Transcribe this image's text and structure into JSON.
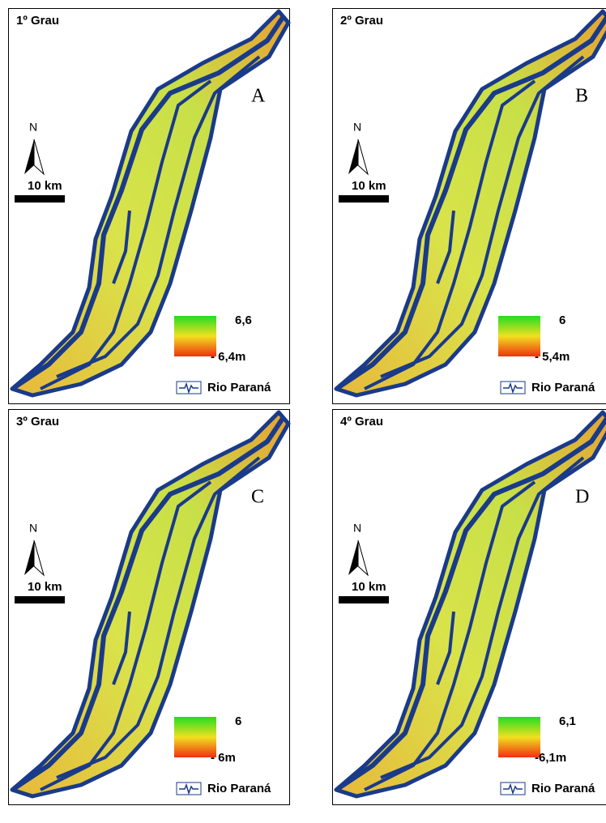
{
  "panels": [
    {
      "title": "1º Grau",
      "letter": "A",
      "north": "N",
      "scale": "10 km",
      "legend_max": "6,6",
      "legend_min": "- 6,4m",
      "river_label": "Rio Paraná"
    },
    {
      "title": "2º Grau",
      "letter": "B",
      "north": "N",
      "scale": "10 km",
      "legend_max": "6",
      "legend_min": "- 5,4m",
      "river_label": "Rio Paraná"
    },
    {
      "title": "3º Grau",
      "letter": "C",
      "north": "N",
      "scale": "10 km",
      "legend_max": "6",
      "legend_min": "- 6m",
      "river_label": "Rio Paraná"
    },
    {
      "title": "4º Grau",
      "letter": "D",
      "north": "N",
      "scale": "10 km",
      "legend_max": "6,1",
      "legend_min": "-6,1m",
      "river_label": "Rio Paraná"
    }
  ]
}
